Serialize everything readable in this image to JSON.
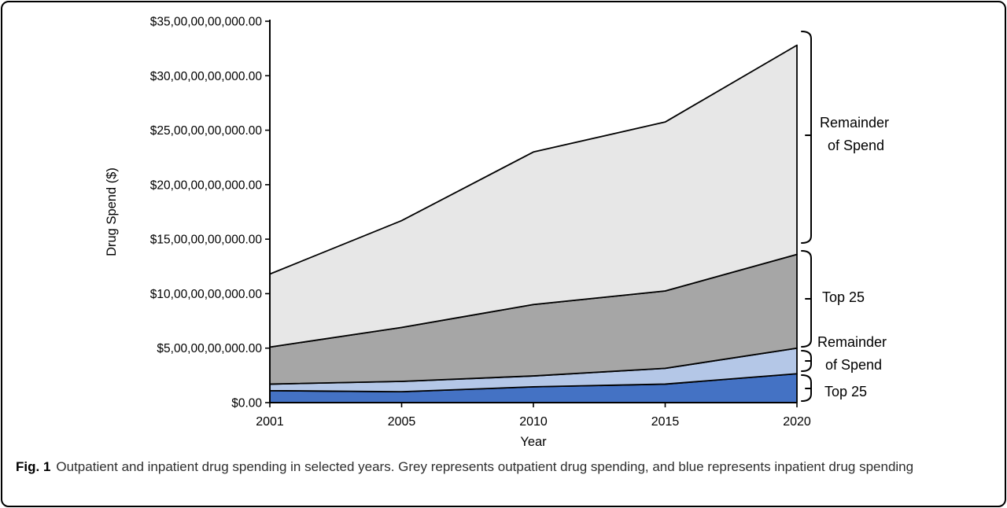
{
  "figure": {
    "label": "Fig. 1",
    "caption": "Outpatient and inpatient drug spending in selected years. Grey represents outpatient drug spending, and blue represents inpatient drug spending"
  },
  "chart_data": {
    "type": "area",
    "stacked": true,
    "title": "",
    "x": {
      "title": "Year",
      "categories": [
        "2001",
        "2005",
        "2010",
        "2015",
        "2020"
      ]
    },
    "y": {
      "title": "Drug Spend ($)",
      "tick_values_usd_billions": [
        0,
        5,
        10,
        15,
        20,
        25,
        30,
        35
      ],
      "tick_labels": [
        "$0.00",
        "$5,00,00,00,000.00",
        "$10,00,00,00,000.00",
        "$15,00,00,00,000.00",
        "$20,00,00,00,000.00",
        "$25,00,00,00,000.00",
        "$30,00,00,00,000.00",
        "$35,00,00,00,000.00"
      ],
      "range_usd_billions": [
        0,
        35
      ],
      "gridlines": false
    },
    "series": [
      {
        "name": "Inpatient Top 25",
        "group": "inpatient",
        "color": "#4472c4",
        "values_usd_billions": [
          1.1,
          1.0,
          1.45,
          1.7,
          2.65
        ]
      },
      {
        "name": "Inpatient Remainder of Spend",
        "group": "inpatient",
        "color": "#b4c7e7",
        "values_usd_billions": [
          0.6,
          0.95,
          1.0,
          1.45,
          2.35
        ]
      },
      {
        "name": "Outpatient Top 25",
        "group": "outpatient",
        "color": "#a6a6a6",
        "values_usd_billions": [
          3.4,
          4.95,
          6.55,
          7.1,
          8.6
        ]
      },
      {
        "name": "Outpatient Remainder of Spend",
        "group": "outpatient",
        "color": "#e7e7e7",
        "values_usd_billions": [
          6.7,
          9.8,
          14.0,
          15.5,
          19.2
        ]
      }
    ],
    "right_annotations": [
      {
        "lines": [
          "Remainder",
          "of Spend"
        ],
        "series": "Outpatient Remainder of Spend"
      },
      {
        "lines": [
          "Top 25"
        ],
        "series": "Outpatient Top 25"
      },
      {
        "lines": [
          "Remainder",
          "of Spend"
        ],
        "series": "Inpatient Remainder of Spend"
      },
      {
        "lines": [
          "Top 25"
        ],
        "series": "Inpatient Top 25"
      }
    ],
    "colors": {
      "axis": "#000000",
      "area_outline": "#000000"
    },
    "legend_position": "right-braces"
  }
}
